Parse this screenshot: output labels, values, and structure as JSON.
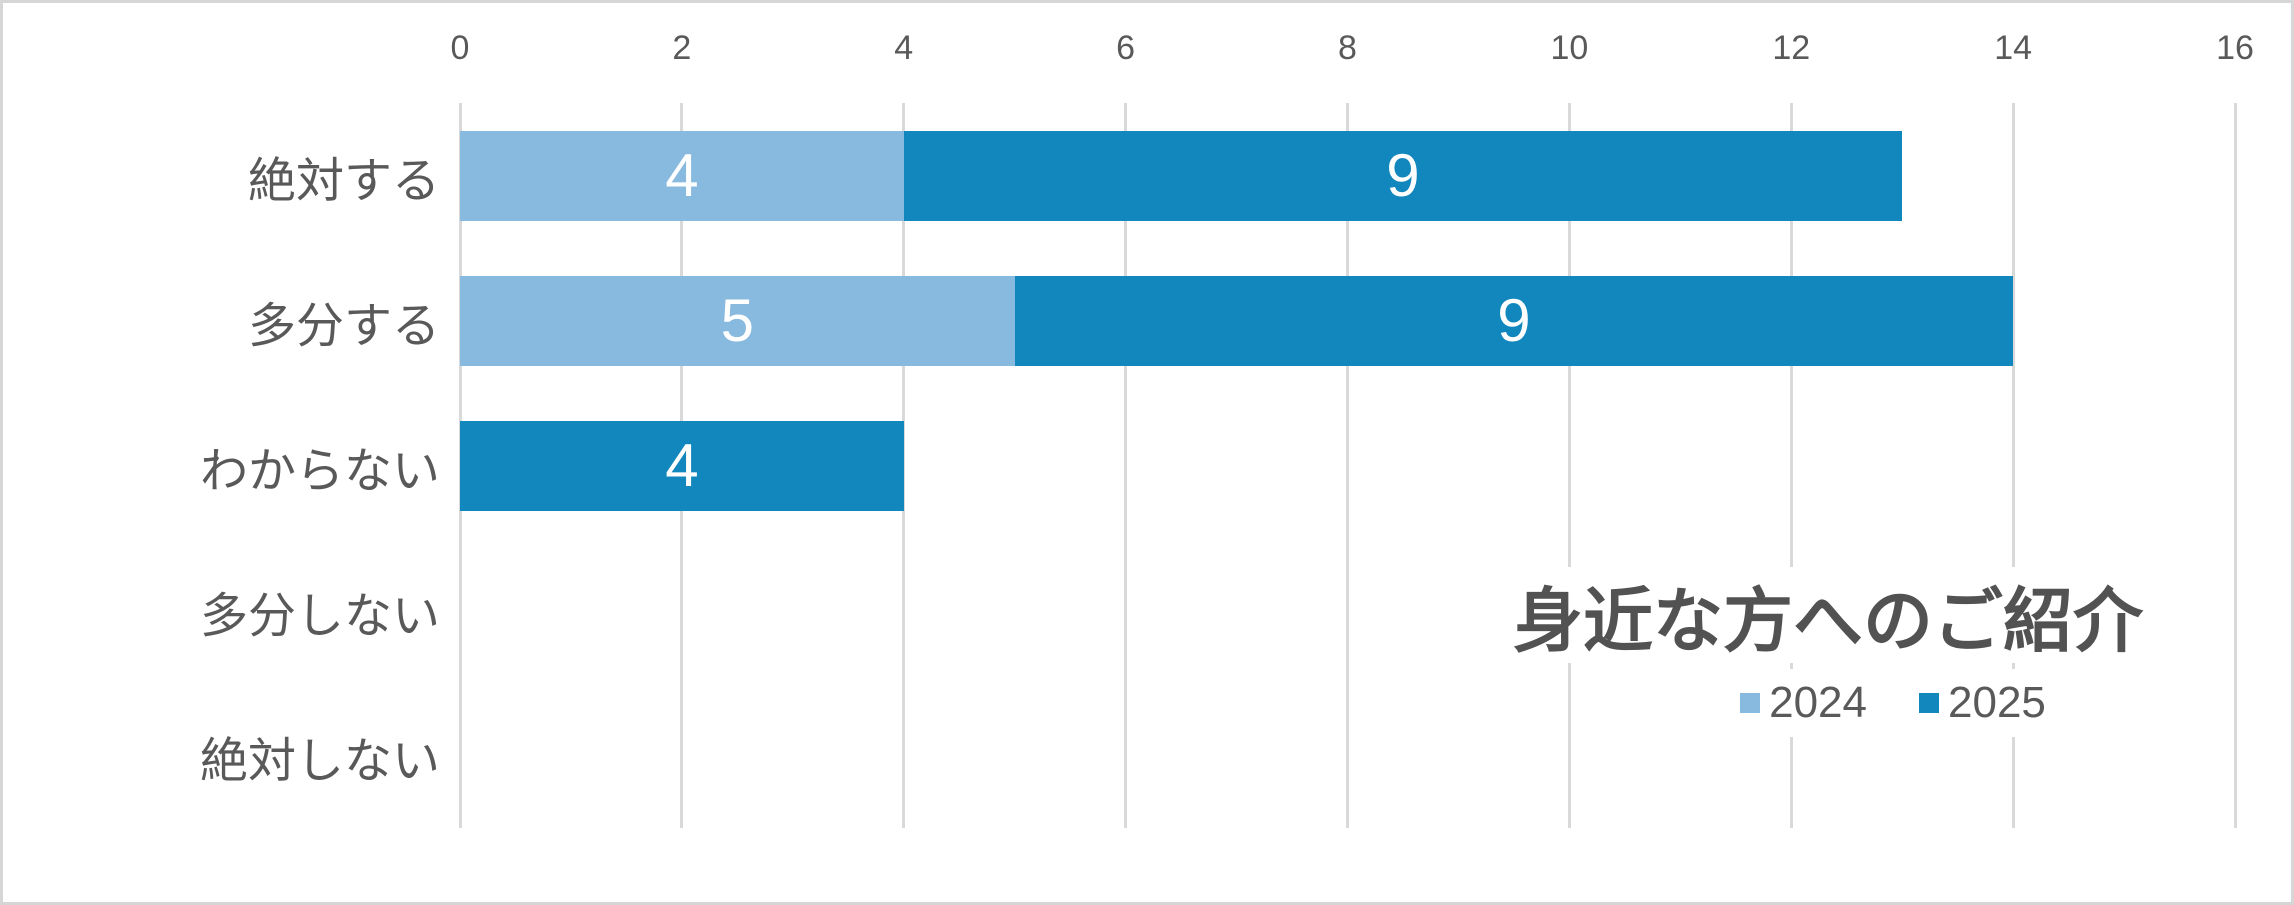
{
  "chart_data": {
    "type": "bar",
    "orientation": "horizontal",
    "stacked": true,
    "title": "身近な方へのご紹介",
    "categories": [
      "絶対する",
      "多分する",
      "わからない",
      "多分しない",
      "絶対しない"
    ],
    "series": [
      {
        "name": "2024",
        "color": "#88B9DE",
        "values": [
          4,
          5,
          0,
          0,
          0
        ]
      },
      {
        "name": "2025",
        "color": "#1287BD",
        "values": [
          9,
          9,
          4,
          0,
          0
        ]
      }
    ],
    "x_axis": {
      "position": "top",
      "min": 0,
      "max": 16,
      "step": 2,
      "ticks": [
        0,
        2,
        4,
        6,
        8,
        10,
        12,
        14,
        16
      ]
    },
    "grid": true,
    "data_labels": true,
    "legend_position": "inside-right-below-title",
    "legend_entries": [
      "2024",
      "2025"
    ]
  },
  "colors": {
    "series_2024": "#88B9DE",
    "series_2025": "#1287BD",
    "gridline": "#D9D9D9",
    "axis_text": "#595959",
    "title_text": "#525252",
    "data_label_text": "#FFFFFF",
    "frame_border": "#D6D6D6",
    "background": "#FFFFFF"
  }
}
